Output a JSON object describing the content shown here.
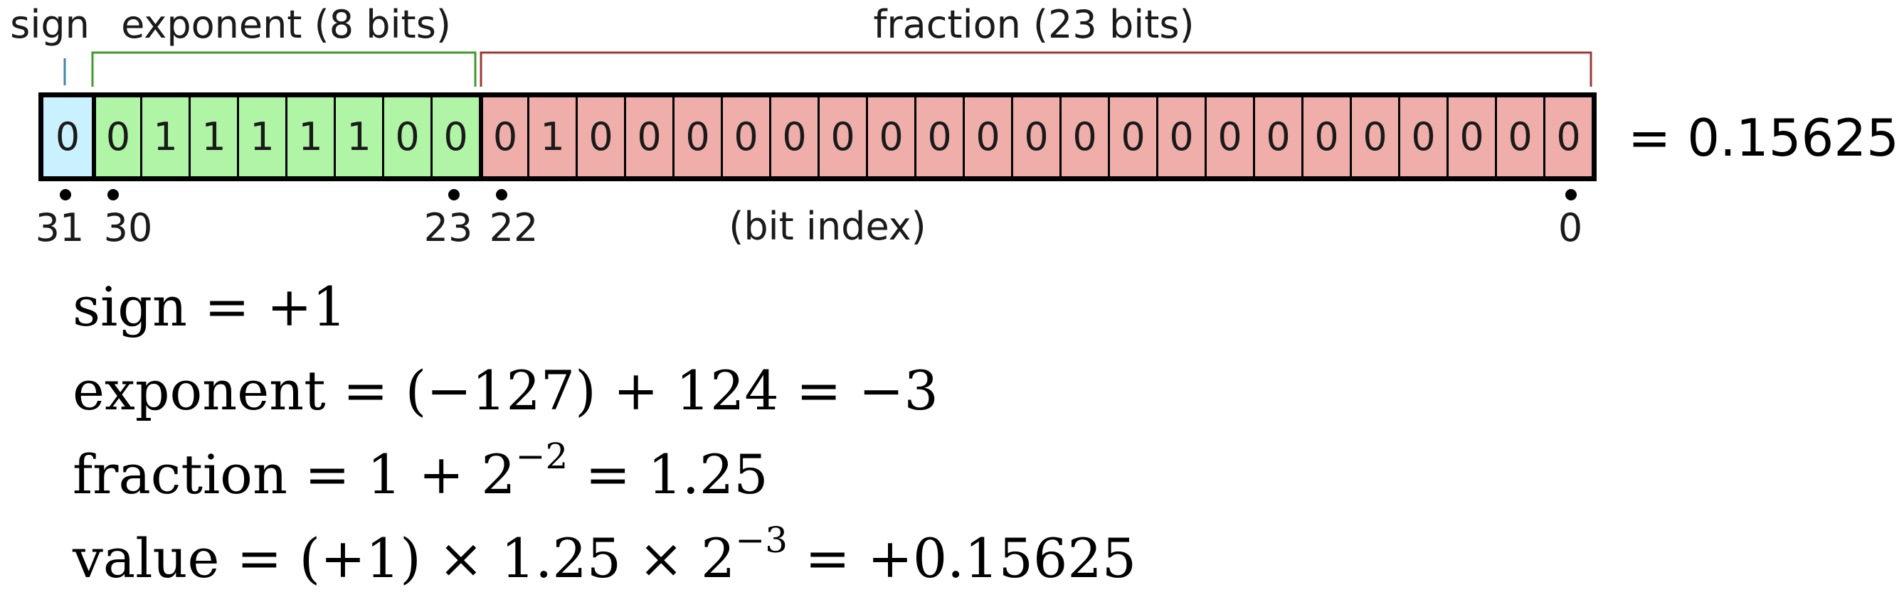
{
  "headers": {
    "sign": "sign",
    "exponent": "exponent (8 bits)",
    "fraction": "fraction (23 bits)"
  },
  "bits": [
    "0",
    "0",
    "1",
    "1",
    "1",
    "1",
    "1",
    "0",
    "0",
    "0",
    "1",
    "0",
    "0",
    "0",
    "0",
    "0",
    "0",
    "0",
    "0",
    "0",
    "0",
    "0",
    "0",
    "0",
    "0",
    "0",
    "0",
    "0",
    "0",
    "0",
    "0",
    "0"
  ],
  "colors": {
    "sign": "#c9f1ff",
    "exponent": "#aff5a5",
    "fraction": "#f0aeab",
    "sign_bracket": "#3d8aa1",
    "exponent_bracket": "#3e9b2c",
    "fraction_bracket": "#9b3a36"
  },
  "result": "= 0.15625",
  "bit_index": {
    "labels": [
      "31",
      "30",
      "23",
      "22",
      "0"
    ],
    "caption": "(bit index)"
  },
  "equations": {
    "sign": {
      "lhs": "sign",
      "rhs": "+1"
    },
    "exponent": {
      "lhs": "exponent",
      "rhs": "(−127) + 124 = −3"
    },
    "fraction": {
      "lhs": "fraction",
      "pre": "1 + 2",
      "sup": "−2",
      "post": "= 1.25"
    },
    "value": {
      "lhs": "value",
      "pre": "(+1) × 1.25 × 2",
      "sup": "−3",
      "post": "= +0.15625"
    }
  }
}
